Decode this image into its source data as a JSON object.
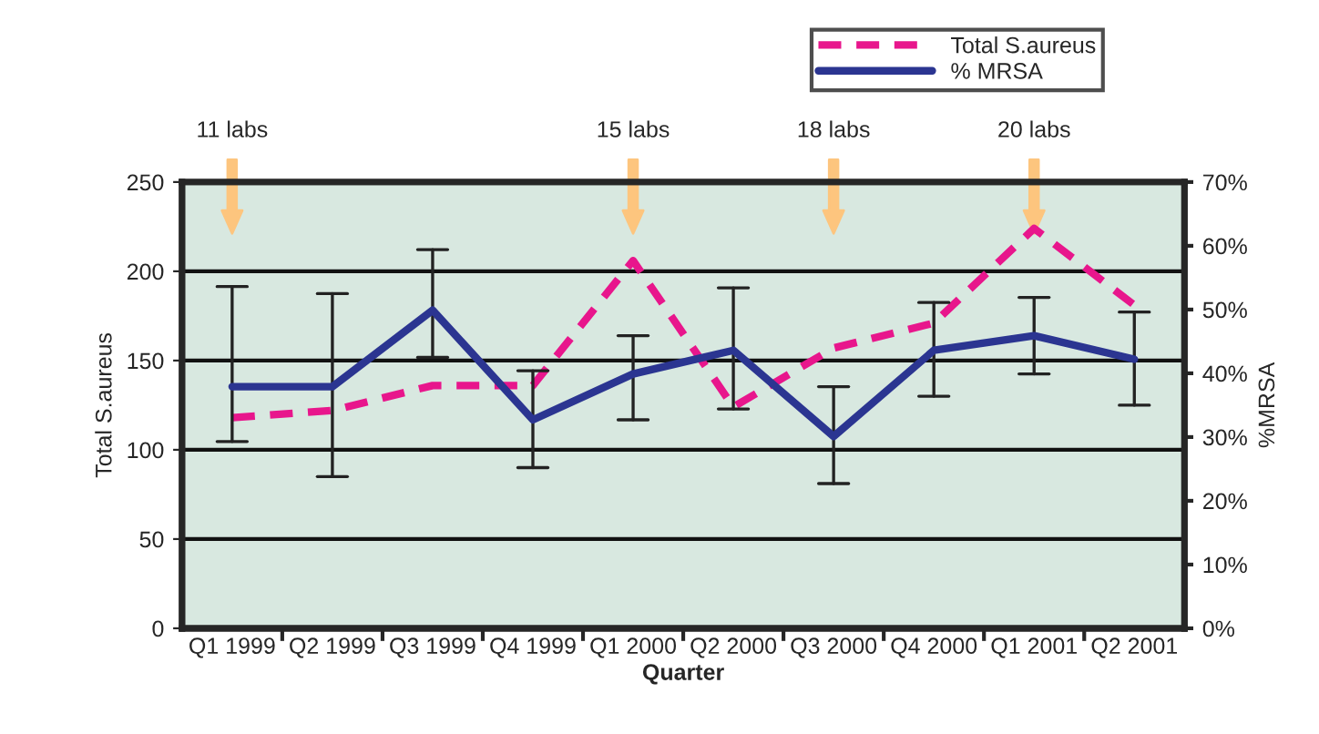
{
  "chart_data": {
    "type": "line",
    "xlabel": "Quarter",
    "ylabel": "Total S.aureus",
    "y2label": "%MRSA",
    "categories": [
      "Q1 1999",
      "Q2 1999",
      "Q3 1999",
      "Q4 1999",
      "Q1 2000",
      "Q2 2000",
      "Q3 2000",
      "Q4 2000",
      "Q1 2001",
      "Q2 2001"
    ],
    "series": [
      {
        "name": "Total S.aureus",
        "color": "#e8168c",
        "line_style": "dashed",
        "values": [
          118,
          122,
          136,
          136,
          206,
          124,
          157,
          171,
          224,
          181
        ]
      },
      {
        "name": "% MRSA",
        "color": "#2b3591",
        "line_style": "solid",
        "axis": "y2",
        "values": [
          37.9,
          37.9,
          49.9,
          32.7,
          39.9,
          43.6,
          30.1,
          43.6,
          45.9,
          42.2
        ],
        "errors": [
          [
            29.3,
            53.6
          ],
          [
            23.8,
            52.5
          ],
          [
            42.5,
            59.4
          ],
          [
            25.2,
            40.4
          ],
          [
            32.7,
            45.9
          ],
          [
            34.4,
            53.4
          ],
          [
            22.7,
            37.9
          ],
          [
            36.4,
            51.1
          ],
          [
            39.9,
            51.9
          ],
          [
            35.0,
            49.6
          ]
        ]
      }
    ],
    "ylim": [
      0,
      250
    ],
    "yticks": [
      0,
      50,
      100,
      150,
      200,
      250
    ],
    "y2lim": [
      0,
      70
    ],
    "y2ticks": [
      {
        "value": 0,
        "label": "0%"
      },
      {
        "value": 10,
        "label": "10%"
      },
      {
        "value": 20,
        "label": "20%"
      },
      {
        "value": 30,
        "label": "30%"
      },
      {
        "value": 40,
        "label": "40%"
      },
      {
        "value": 50,
        "label": "50%"
      },
      {
        "value": 60,
        "label": "60%"
      },
      {
        "value": 70,
        "label": "70%"
      }
    ],
    "grid": "y",
    "legend": "top right",
    "marker": "none",
    "annotations": [
      "11 labs",
      "15 labs",
      "18 labs",
      "20 labs"
    ]
  }
}
